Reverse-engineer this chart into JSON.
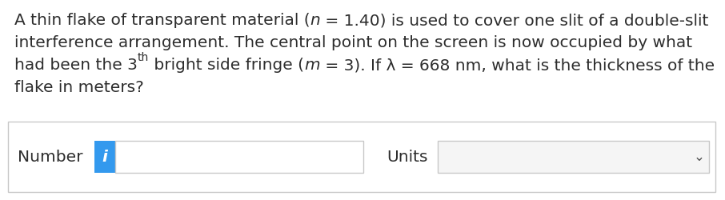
{
  "bg_color": "#ffffff",
  "text_color": "#2d2d2d",
  "line1": "A thin flake of transparent material (",
  "line1b": "n",
  "line1c": " = 1.40) is used to cover one slit of a double-slit",
  "line2": "interference arrangement. The central point on the screen is now occupied by what",
  "line3a": "had been the 3",
  "line3b": "th",
  "line3c": " bright side fringe (",
  "line3d": "m",
  "line3e": " = 3). If λ = 668 nm, what is the thickness of the",
  "line4": "flake in meters?",
  "number_label": "Number",
  "units_label": "Units",
  "icon_color": "#3399ee",
  "icon_text": "i",
  "icon_text_color": "#ffffff",
  "box_border_color": "#c8c8c8",
  "dropdown_fill": "#f5f5f5",
  "input_fill": "#ffffff",
  "outer_box_fill": "#ffffff",
  "dropdown_arrow": "∨",
  "font_size": 14.5,
  "small_font_size": 10.0,
  "font_family": "DejaVu Sans"
}
